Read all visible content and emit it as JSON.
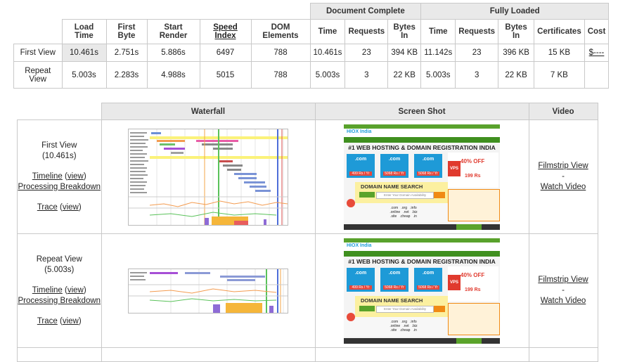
{
  "summary": {
    "group_doc": "Document Complete",
    "group_full": "Fully Loaded",
    "headers": [
      "Load Time",
      "First Byte",
      "Start Render",
      "Speed Index",
      "DOM Elements",
      "Time",
      "Requests",
      "Bytes In",
      "Time",
      "Requests",
      "Bytes In",
      "Certificates",
      "Cost"
    ],
    "rows": [
      {
        "label": "First View",
        "cells": [
          "10.461s",
          "2.751s",
          "5.886s",
          "6497",
          "788",
          "10.461s",
          "23",
          "394 KB",
          "11.142s",
          "23",
          "396 KB",
          "15 KB",
          "$----"
        ]
      },
      {
        "label": "Repeat View",
        "cells": [
          "5.003s",
          "2.283s",
          "4.988s",
          "5015",
          "788",
          "5.003s",
          "3",
          "22 KB",
          "5.003s",
          "3",
          "22 KB",
          "7 KB",
          ""
        ]
      }
    ]
  },
  "details": {
    "headers": {
      "waterfall": "Waterfall",
      "screenshot": "Screen Shot",
      "video": "Video"
    },
    "views": [
      {
        "title": "First View",
        "time": "(10.461s)",
        "timeline": "Timeline",
        "view": "view",
        "processing": "Processing Breakdown",
        "trace": "Trace",
        "filmstrip": "Filmstrip View",
        "dash": "-",
        "watch": "Watch Video"
      },
      {
        "title": "Repeat View",
        "time": "(5.003s)",
        "timeline": "Timeline",
        "view": "view",
        "processing": "Processing Breakdown",
        "trace": "Trace",
        "filmstrip": "Filmstrip View",
        "dash": "-",
        "watch": "Watch Video"
      }
    ]
  },
  "screenshot": {
    "logo": "HIOX India",
    "headline": "#1 WEB HOSTING & DOMAIN REGISTRATION INDIA",
    "plans": [
      {
        "name": ".com",
        "price": "499 Rs / Yr"
      },
      {
        "name": ".com",
        "price": "5068 Rs / Yr"
      },
      {
        "name": ".com",
        "price": "5068 Rs / Yr"
      }
    ],
    "promo_pct": "40% OFF",
    "vps": "VPS",
    "domain_title": "DOMAIN NAME SEARCH",
    "search_placeholder": "Enter Your Domain Availability",
    "price": "199 Rs",
    "tlds": [
      ".com",
      ".org",
      ".info",
      ".online",
      ".net",
      ".biz",
      ".site",
      ".cheap",
      ".in"
    ]
  },
  "colors": {
    "header_gray": "#e9e9e9",
    "border": "#c9c9c9",
    "green": "#5aa32a",
    "brand_blue": "#1f9dd9",
    "orange": "#f08a14"
  }
}
